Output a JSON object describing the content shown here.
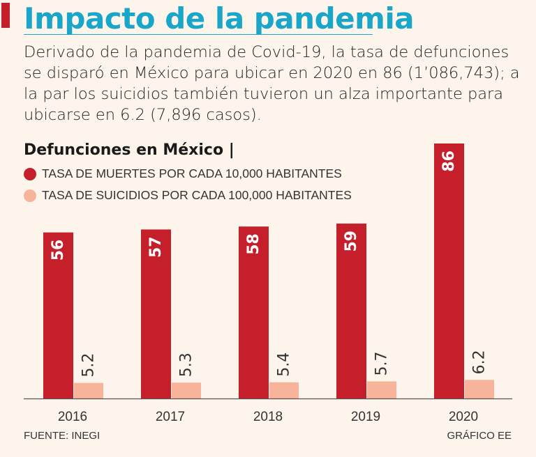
{
  "header": {
    "title": "Impacto de la pandemia",
    "intro": "Derivado de la pandemia de Covid-19, la tasa de defunciones se disparó en México para ubicar en 2020 en 86 (1’086,743); a la par los suicidios también tuvieron un alza importante para ubicarse en 6.2 (7,896 casos).",
    "accent_color": "#c41f2b",
    "title_color": "#1aa6c9"
  },
  "chart_data": {
    "type": "bar",
    "title": "Defunciones en México |",
    "categories": [
      "2016",
      "2017",
      "2018",
      "2019",
      "2020"
    ],
    "series": [
      {
        "name": "TASA DE MUERTES POR CADA 10,000 HABITANTES",
        "values": [
          56,
          57,
          58,
          59,
          86
        ],
        "labels": [
          "56",
          "57",
          "58",
          "59",
          "86"
        ],
        "color": "#c41f2b"
      },
      {
        "name": "TASA DE SUICIDIOS POR CADA 100,000 HABITANTES",
        "values": [
          5.2,
          5.3,
          5.4,
          5.7,
          6.2
        ],
        "labels": [
          "5.2",
          "5.3",
          "5.4",
          "5.7",
          "6.2"
        ],
        "color": "#f7b49a"
      }
    ],
    "ylim": [
      0,
      86
    ],
    "grid": false,
    "legend": "top-left"
  },
  "footer": {
    "source": "FUENTE: INEGI",
    "credit": "GRÁFICO EE"
  }
}
